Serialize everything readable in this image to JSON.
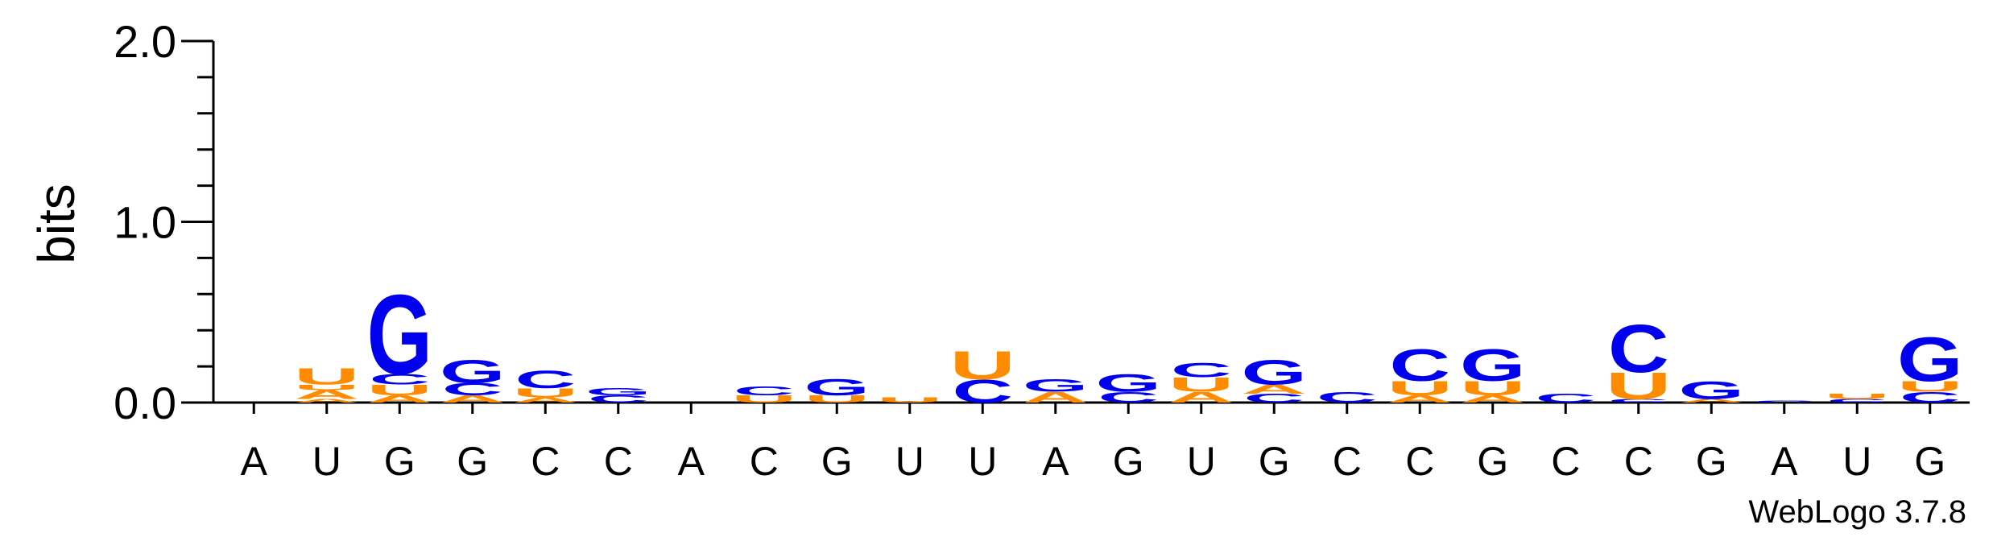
{
  "chart_data": {
    "type": "sequence_logo",
    "ylabel": "bits",
    "ylim": [
      0,
      2.0
    ],
    "yticks": [
      "0.0",
      "1.0",
      "2.0"
    ],
    "colors": {
      "A": "#ff8c00",
      "U": "#ff8c00",
      "C": "#0000ee",
      "G": "#0000ee"
    },
    "credit": "WebLogo 3.7.8",
    "positions": [
      {
        "label": "A",
        "stack": []
      },
      {
        "label": "U",
        "stack": [
          [
            "A",
            0.02
          ],
          [
            "A",
            0.05
          ],
          [
            "U",
            0.03
          ],
          [
            "U",
            0.09
          ]
        ]
      },
      {
        "label": "G",
        "stack": [
          [
            "A",
            0.04
          ],
          [
            "U",
            0.06
          ],
          [
            "C",
            0.06
          ],
          [
            "G",
            0.45
          ]
        ]
      },
      {
        "label": "G",
        "stack": [
          [
            "A",
            0.04
          ],
          [
            "C",
            0.07
          ],
          [
            "G",
            0.13
          ]
        ]
      },
      {
        "label": "C",
        "stack": [
          [
            "A",
            0.03
          ],
          [
            "U",
            0.05
          ],
          [
            "C",
            0.1
          ]
        ]
      },
      {
        "label": "C",
        "stack": [
          [
            "C",
            0.04
          ],
          [
            "G",
            0.04
          ]
        ]
      },
      {
        "label": "A",
        "stack": []
      },
      {
        "label": "C",
        "stack": [
          [
            "U",
            0.04
          ],
          [
            "C",
            0.05
          ]
        ]
      },
      {
        "label": "G",
        "stack": [
          [
            "U",
            0.04
          ],
          [
            "G",
            0.09
          ]
        ]
      },
      {
        "label": "U",
        "stack": [
          [
            "U",
            0.03
          ]
        ]
      },
      {
        "label": "U",
        "stack": [
          [
            "C",
            0.13
          ],
          [
            "U",
            0.16
          ]
        ]
      },
      {
        "label": "A",
        "stack": [
          [
            "A",
            0.06
          ],
          [
            "G",
            0.07
          ]
        ]
      },
      {
        "label": "G",
        "stack": [
          [
            "C",
            0.06
          ],
          [
            "G",
            0.1
          ]
        ]
      },
      {
        "label": "U",
        "stack": [
          [
            "A",
            0.06
          ],
          [
            "U",
            0.08
          ],
          [
            "C",
            0.08
          ]
        ]
      },
      {
        "label": "G",
        "stack": [
          [
            "C",
            0.05
          ],
          [
            "A",
            0.05
          ],
          [
            "G",
            0.14
          ]
        ]
      },
      {
        "label": "C",
        "stack": [
          [
            "C",
            0.06
          ]
        ]
      },
      {
        "label": "C",
        "stack": [
          [
            "A",
            0.04
          ],
          [
            "U",
            0.08
          ],
          [
            "C",
            0.18
          ]
        ]
      },
      {
        "label": "G",
        "stack": [
          [
            "A",
            0.04
          ],
          [
            "U",
            0.08
          ],
          [
            "G",
            0.18
          ]
        ]
      },
      {
        "label": "C",
        "stack": [
          [
            "C",
            0.05
          ]
        ]
      },
      {
        "label": "C",
        "stack": [
          [
            "C",
            0.02
          ],
          [
            "U",
            0.15
          ],
          [
            "C",
            0.27
          ]
        ]
      },
      {
        "label": "G",
        "stack": [
          [
            "A",
            0.02
          ],
          [
            "G",
            0.1
          ]
        ]
      },
      {
        "label": "A",
        "stack": [
          [
            "C",
            0.01
          ]
        ]
      },
      {
        "label": "U",
        "stack": [
          [
            "C",
            0.02
          ],
          [
            "U",
            0.03
          ]
        ]
      },
      {
        "label": "G",
        "stack": [
          [
            "C",
            0.06
          ],
          [
            "U",
            0.06
          ],
          [
            "G",
            0.25
          ]
        ]
      }
    ]
  }
}
